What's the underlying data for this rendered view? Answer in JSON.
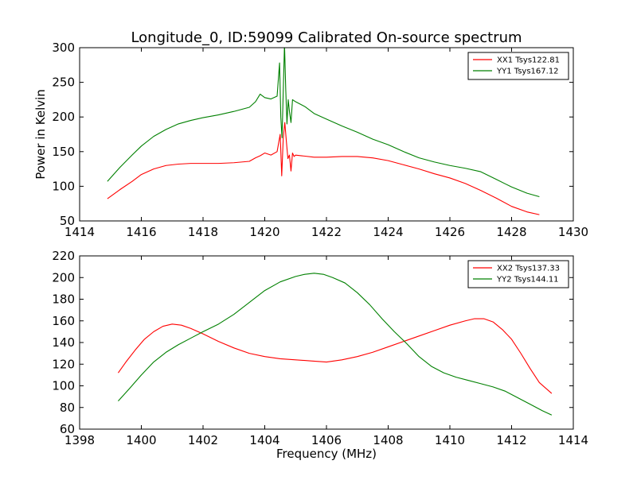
{
  "figure": {
    "title": "Longitude_0, ID:59099 Calibrated On-source spectrum",
    "xlabel": "Frequency (MHz)",
    "ylabel": "Power in Kelvin"
  },
  "chart_data": [
    {
      "type": "line",
      "title": "Longitude_0, ID:59099 Calibrated On-source spectrum",
      "xlabel": "",
      "ylabel": "Power in Kelvin",
      "xlim": [
        1414,
        1430
      ],
      "ylim": [
        50,
        300
      ],
      "xticks": [
        "1414",
        "1416",
        "1418",
        "1420",
        "1422",
        "1424",
        "1426",
        "1428",
        "1430"
      ],
      "yticks": [
        "50",
        "100",
        "150",
        "200",
        "250",
        "300"
      ],
      "grid": false,
      "legend_position": "top-right",
      "series": [
        {
          "name": "XX1 Tsys122.81",
          "color": "#ff0000",
          "x": [
            1414.9,
            1415.3,
            1415.7,
            1416.0,
            1416.4,
            1416.8,
            1417.2,
            1417.6,
            1418.0,
            1418.5,
            1419.0,
            1419.5,
            1419.7,
            1419.85,
            1420.0,
            1420.2,
            1420.4,
            1420.5,
            1420.55,
            1420.6,
            1420.65,
            1420.7,
            1420.75,
            1420.8,
            1420.85,
            1420.9,
            1420.95,
            1421.0,
            1421.2,
            1421.6,
            1422.0,
            1422.5,
            1423.0,
            1423.5,
            1424.0,
            1424.5,
            1425.0,
            1425.5,
            1426.0,
            1426.5,
            1427.0,
            1427.5,
            1428.0,
            1428.5,
            1428.9
          ],
          "y": [
            82,
            95,
            107,
            117,
            125,
            130,
            132,
            133,
            133,
            133,
            134,
            136,
            141,
            144,
            148,
            145,
            150,
            175,
            115,
            170,
            192,
            165,
            140,
            145,
            122,
            148,
            143,
            145,
            144,
            142,
            142,
            143,
            143,
            141,
            137,
            131,
            125,
            118,
            112,
            104,
            94,
            83,
            71,
            63,
            59
          ]
        },
        {
          "name": "YY1 Tsys167.12",
          "color": "#008000",
          "x": [
            1414.9,
            1415.3,
            1415.7,
            1416.0,
            1416.4,
            1416.8,
            1417.2,
            1417.6,
            1418.0,
            1418.5,
            1419.0,
            1419.5,
            1419.7,
            1419.85,
            1420.0,
            1420.2,
            1420.4,
            1420.48,
            1420.52,
            1420.56,
            1420.6,
            1420.64,
            1420.68,
            1420.72,
            1420.76,
            1420.8,
            1420.85,
            1420.9,
            1421.0,
            1421.3,
            1421.6,
            1422.0,
            1422.5,
            1423.0,
            1423.5,
            1424.0,
            1424.5,
            1425.0,
            1425.5,
            1426.0,
            1426.5,
            1427.0,
            1427.5,
            1428.0,
            1428.5,
            1428.9
          ],
          "y": [
            107,
            127,
            145,
            158,
            172,
            182,
            190,
            195,
            199,
            203,
            208,
            214,
            222,
            233,
            228,
            226,
            230,
            278,
            200,
            170,
            238,
            305,
            240,
            190,
            225,
            208,
            192,
            225,
            222,
            215,
            205,
            197,
            187,
            178,
            168,
            160,
            150,
            141,
            135,
            130,
            126,
            121,
            110,
            99,
            90,
            85
          ]
        }
      ]
    },
    {
      "type": "line",
      "title": "",
      "xlabel": "Frequency (MHz)",
      "ylabel": "",
      "xlim": [
        1398,
        1414
      ],
      "ylim": [
        60,
        220
      ],
      "xticks": [
        "1398",
        "1400",
        "1402",
        "1404",
        "1406",
        "1408",
        "1410",
        "1412",
        "1414"
      ],
      "yticks": [
        "60",
        "80",
        "100",
        "120",
        "140",
        "160",
        "180",
        "200",
        "220"
      ],
      "grid": false,
      "legend_position": "top-right",
      "series": [
        {
          "name": "XX2 Tsys137.33",
          "color": "#ff0000",
          "x": [
            1399.25,
            1399.5,
            1399.8,
            1400.1,
            1400.4,
            1400.7,
            1401.0,
            1401.3,
            1401.6,
            1402.0,
            1402.5,
            1403.0,
            1403.5,
            1404.0,
            1404.5,
            1405.0,
            1405.5,
            1406.0,
            1406.5,
            1407.0,
            1407.5,
            1408.0,
            1408.5,
            1409.0,
            1409.5,
            1410.0,
            1410.5,
            1410.8,
            1411.1,
            1411.4,
            1411.7,
            1412.0,
            1412.3,
            1412.6,
            1412.9,
            1413.3
          ],
          "y": [
            112,
            122,
            133,
            143,
            150,
            155,
            157,
            156,
            153,
            148,
            141,
            135,
            130,
            127,
            125,
            124,
            123,
            122,
            124,
            127,
            131,
            136,
            141,
            146,
            151,
            156,
            160,
            162,
            162,
            159,
            152,
            143,
            130,
            116,
            103,
            93
          ]
        },
        {
          "name": "YY2 Tsys144.11",
          "color": "#008000",
          "x": [
            1399.25,
            1399.6,
            1400.0,
            1400.4,
            1400.8,
            1401.2,
            1401.6,
            1402.0,
            1402.5,
            1403.0,
            1403.5,
            1404.0,
            1404.5,
            1405.0,
            1405.3,
            1405.6,
            1405.9,
            1406.2,
            1406.6,
            1407.0,
            1407.4,
            1407.8,
            1408.2,
            1408.6,
            1409.0,
            1409.4,
            1409.8,
            1410.2,
            1410.6,
            1411.0,
            1411.4,
            1411.8,
            1412.2,
            1412.6,
            1413.0,
            1413.3
          ],
          "y": [
            86,
            97,
            110,
            122,
            131,
            138,
            144,
            150,
            157,
            166,
            177,
            188,
            196,
            201,
            203,
            204,
            203,
            200,
            195,
            186,
            175,
            162,
            150,
            139,
            127,
            118,
            112,
            108,
            105,
            102,
            99,
            95,
            89,
            83,
            77,
            73
          ]
        }
      ]
    }
  ]
}
